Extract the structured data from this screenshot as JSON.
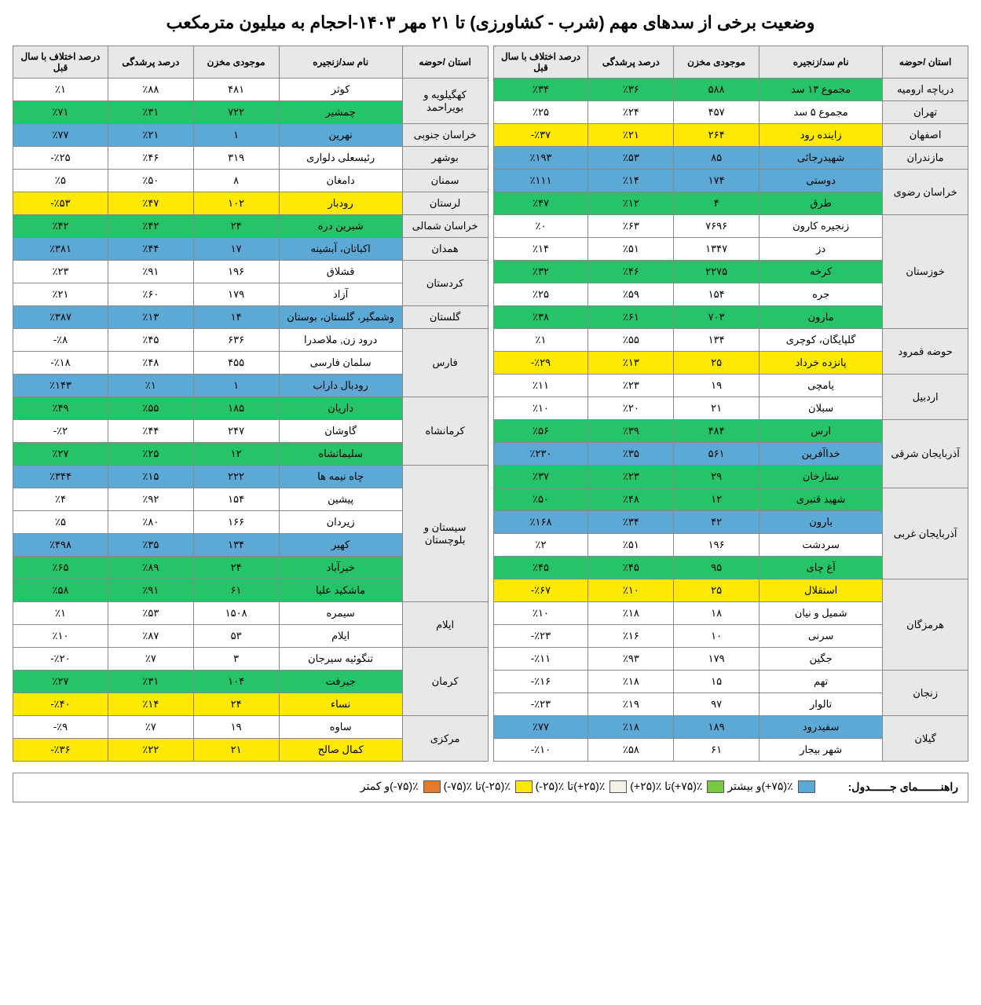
{
  "title": "وضعیت برخی از سدهای مهم (شرب - کشاورزی) تا ۲۱ مهر ۱۴۰۳-احجام به میلیون مترمکعب",
  "headers": {
    "basin": "استان /حوضه",
    "dam": "نام سد/زنجیره",
    "vol": "موجودی مخزن",
    "fill": "درصد پرشدگی",
    "diff": "درصد اختلاف با سال قبل"
  },
  "right": [
    {
      "basin": "دریاچه ارومیه",
      "rows": [
        {
          "dam": "مجموع ۱۳ سد",
          "vol": "۵۸۸",
          "fill": "٪۳۶",
          "diff": "٪۳۴",
          "color": "green"
        }
      ]
    },
    {
      "basin": "تهران",
      "rows": [
        {
          "dam": "مجموع ۵ سد",
          "vol": "۴۵۷",
          "fill": "٪۲۴",
          "diff": "٪۲۵",
          "color": "white"
        }
      ]
    },
    {
      "basin": "اصفهان",
      "rows": [
        {
          "dam": "زاینده رود",
          "vol": "۲۶۴",
          "fill": "٪۲۱",
          "diff": "٪۳۷-",
          "color": "yellow"
        }
      ]
    },
    {
      "basin": "مازندران",
      "rows": [
        {
          "dam": "شهیدرجائی",
          "vol": "۸۵",
          "fill": "٪۵۳",
          "diff": "٪۱۹۳",
          "color": "blue"
        }
      ]
    },
    {
      "basin": "خراسان رضوی",
      "rows": [
        {
          "dam": "دوستی",
          "vol": "۱۷۴",
          "fill": "٪۱۴",
          "diff": "٪۱۱۱",
          "color": "blue"
        },
        {
          "dam": "طرق",
          "vol": "۴",
          "fill": "٪۱۲",
          "diff": "٪۴۷",
          "color": "green"
        }
      ]
    },
    {
      "basin": "خوزستان",
      "rows": [
        {
          "dam": "زنجیره کارون",
          "vol": "۷۶۹۶",
          "fill": "٪۶۳",
          "diff": "٪۰",
          "color": "white"
        },
        {
          "dam": "دز",
          "vol": "۱۳۴۷",
          "fill": "٪۵۱",
          "diff": "٪۱۴",
          "color": "white"
        },
        {
          "dam": "کرخه",
          "vol": "۲۲۷۵",
          "fill": "٪۴۶",
          "diff": "٪۳۲",
          "color": "green"
        },
        {
          "dam": "جره",
          "vol": "۱۵۴",
          "fill": "٪۵۹",
          "diff": "٪۲۵",
          "color": "white"
        },
        {
          "dam": "مارون",
          "vol": "۷۰۳",
          "fill": "٪۶۱",
          "diff": "٪۳۸",
          "color": "green"
        }
      ]
    },
    {
      "basin": "حوضه قمرود",
      "rows": [
        {
          "dam": "گلپایگان، کوچری",
          "vol": "۱۳۴",
          "fill": "٪۵۵",
          "diff": "٪۱",
          "color": "white"
        },
        {
          "dam": "پانزده خرداد",
          "vol": "۲۵",
          "fill": "٪۱۳",
          "diff": "٪۲۹-",
          "color": "yellow"
        }
      ]
    },
    {
      "basin": "اردبیل",
      "rows": [
        {
          "dam": "یامچی",
          "vol": "۱۹",
          "fill": "٪۲۳",
          "diff": "٪۱۱",
          "color": "white"
        },
        {
          "dam": "سبلان",
          "vol": "۲۱",
          "fill": "٪۲۰",
          "diff": "٪۱۰",
          "color": "white"
        }
      ]
    },
    {
      "basin": "آذربایجان شرقی",
      "rows": [
        {
          "dam": "ارس",
          "vol": "۴۸۴",
          "fill": "٪۳۹",
          "diff": "٪۵۶",
          "color": "green"
        },
        {
          "dam": "خداآفرین",
          "vol": "۵۶۱",
          "fill": "٪۳۵",
          "diff": "٪۲۳۰",
          "color": "blue"
        },
        {
          "dam": "ستارخان",
          "vol": "۲۹",
          "fill": "٪۲۳",
          "diff": "٪۳۷",
          "color": "green"
        }
      ]
    },
    {
      "basin": "آذربایجان غربی",
      "rows": [
        {
          "dam": "شهید قنبری",
          "vol": "۱۲",
          "fill": "٪۴۸",
          "diff": "٪۵۰",
          "color": "green"
        },
        {
          "dam": "بارون",
          "vol": "۴۲",
          "fill": "٪۳۴",
          "diff": "٪۱۶۸",
          "color": "blue"
        },
        {
          "dam": "سردشت",
          "vol": "۱۹۶",
          "fill": "٪۵۱",
          "diff": "٪۲",
          "color": "white"
        },
        {
          "dam": "آغ چای",
          "vol": "۹۵",
          "fill": "٪۴۵",
          "diff": "٪۴۵",
          "color": "green"
        }
      ]
    },
    {
      "basin": "هرمزگان",
      "rows": [
        {
          "dam": "استقلال",
          "vol": "۲۵",
          "fill": "٪۱۰",
          "diff": "٪۶۷-",
          "color": "yellow"
        },
        {
          "dam": "شمیل و نیان",
          "vol": "۱۸",
          "fill": "٪۱۸",
          "diff": "٪۱۰",
          "color": "white"
        },
        {
          "dam": "سرنی",
          "vol": "۱۰",
          "fill": "٪۱۶",
          "diff": "٪۲۳-",
          "color": "white"
        },
        {
          "dam": "جگین",
          "vol": "۱۷۹",
          "fill": "٪۹۳",
          "diff": "٪۱۱-",
          "color": "white"
        }
      ]
    },
    {
      "basin": "زنجان",
      "rows": [
        {
          "dam": "تهم",
          "vol": "۱۵",
          "fill": "٪۱۸",
          "diff": "٪۱۶-",
          "color": "white"
        },
        {
          "dam": "تالوار",
          "vol": "۹۷",
          "fill": "٪۱۹",
          "diff": "٪۲۳-",
          "color": "white"
        }
      ]
    },
    {
      "basin": "گیلان",
      "rows": [
        {
          "dam": "سفیدرود",
          "vol": "۱۸۹",
          "fill": "٪۱۸",
          "diff": "٪۷۷",
          "color": "blue"
        },
        {
          "dam": "شهر بیجار",
          "vol": "۶۱",
          "fill": "٪۵۸",
          "diff": "٪۱۰-",
          "color": "white"
        }
      ]
    }
  ],
  "left": [
    {
      "basin": "کهگیلویه و بویراحمد",
      "rows": [
        {
          "dam": "کوثر",
          "vol": "۴۸۱",
          "fill": "٪۸۸",
          "diff": "٪۱",
          "color": "white"
        },
        {
          "dam": "چمشیر",
          "vol": "۷۲۲",
          "fill": "٪۳۱",
          "diff": "٪۷۱",
          "color": "green"
        }
      ]
    },
    {
      "basin": "خراسان جنوبی",
      "rows": [
        {
          "dam": "نهرین",
          "vol": "۱",
          "fill": "٪۲۱",
          "diff": "٪۷۷",
          "color": "blue"
        }
      ]
    },
    {
      "basin": "بوشهر",
      "rows": [
        {
          "dam": "رئیسعلی دلواری",
          "vol": "۳۱۹",
          "fill": "٪۴۶",
          "diff": "٪۲۵-",
          "color": "white"
        }
      ]
    },
    {
      "basin": "سمنان",
      "rows": [
        {
          "dam": "دامغان",
          "vol": "۸",
          "fill": "٪۵۰",
          "diff": "٪۵",
          "color": "white"
        }
      ]
    },
    {
      "basin": "لرستان",
      "rows": [
        {
          "dam": "رودبار",
          "vol": "۱۰۲",
          "fill": "٪۴۷",
          "diff": "٪۵۳-",
          "color": "yellow"
        }
      ]
    },
    {
      "basin": "خراسان شمالی",
      "rows": [
        {
          "dam": "شیرین دره",
          "vol": "۲۴",
          "fill": "٪۴۲",
          "diff": "٪۴۲",
          "color": "green"
        }
      ]
    },
    {
      "basin": "همدان",
      "rows": [
        {
          "dam": "اکباتان، آبشینه",
          "vol": "۱۷",
          "fill": "٪۴۴",
          "diff": "٪۳۸۱",
          "color": "blue"
        }
      ]
    },
    {
      "basin": "کردستان",
      "rows": [
        {
          "dam": "قشلاق",
          "vol": "۱۹۶",
          "fill": "٪۹۱",
          "diff": "٪۲۳",
          "color": "white"
        },
        {
          "dam": "آزاد",
          "vol": "۱۷۹",
          "fill": "٪۶۰",
          "diff": "٪۲۱",
          "color": "white"
        }
      ]
    },
    {
      "basin": "گلستان",
      "rows": [
        {
          "dam": "وشمگیر، گلستان، بوستان",
          "vol": "۱۴",
          "fill": "٪۱۳",
          "diff": "٪۳۸۷",
          "color": "blue"
        }
      ]
    },
    {
      "basin": "فارس",
      "rows": [
        {
          "dam": "درود زن, ملاصدرا",
          "vol": "۶۳۶",
          "fill": "٪۴۵",
          "diff": "٪۸-",
          "color": "white"
        },
        {
          "dam": "سلمان فارسی",
          "vol": "۴۵۵",
          "fill": "٪۴۸",
          "diff": "٪۱۸-",
          "color": "white"
        },
        {
          "dam": "رودبال داراب",
          "vol": "۱",
          "fill": "٪۱",
          "diff": "٪۱۴۳",
          "color": "blue"
        }
      ]
    },
    {
      "basin": "کرمانشاه",
      "rows": [
        {
          "dam": "داریان",
          "vol": "۱۸۵",
          "fill": "٪۵۵",
          "diff": "٪۴۹",
          "color": "green"
        },
        {
          "dam": "گاوشان",
          "vol": "۲۴۷",
          "fill": "٪۴۴",
          "diff": "٪۲-",
          "color": "white"
        },
        {
          "dam": "سلیمانشاه",
          "vol": "۱۲",
          "fill": "٪۲۵",
          "diff": "٪۲۷",
          "color": "green"
        }
      ]
    },
    {
      "basin": "سیستان و بلوچستان",
      "rows": [
        {
          "dam": "چاه نیمه ها",
          "vol": "۲۲۲",
          "fill": "٪۱۵",
          "diff": "٪۳۴۴",
          "color": "blue"
        },
        {
          "dam": "پیشین",
          "vol": "۱۵۴",
          "fill": "٪۹۲",
          "diff": "٪۴",
          "color": "white"
        },
        {
          "dam": "زیردان",
          "vol": "۱۶۶",
          "fill": "٪۸۰",
          "diff": "٪۵",
          "color": "white"
        },
        {
          "dam": "کهیر",
          "vol": "۱۳۴",
          "fill": "٪۳۵",
          "diff": "٪۴۹۸",
          "color": "blue"
        },
        {
          "dam": "خیرآباد",
          "vol": "۲۴",
          "fill": "٪۸۹",
          "diff": "٪۶۵",
          "color": "green"
        },
        {
          "dam": "ماشکید علیا",
          "vol": "۶۱",
          "fill": "٪۹۱",
          "diff": "٪۵۸",
          "color": "green"
        }
      ]
    },
    {
      "basin": "ایلام",
      "rows": [
        {
          "dam": "سیمره",
          "vol": "۱۵۰۸",
          "fill": "٪۵۳",
          "diff": "٪۱",
          "color": "white"
        },
        {
          "dam": "ایلام",
          "vol": "۵۳",
          "fill": "٪۸۷",
          "diff": "٪۱۰",
          "color": "white"
        }
      ]
    },
    {
      "basin": "کرمان",
      "rows": [
        {
          "dam": "تنگوئیه سیرجان",
          "vol": "۳",
          "fill": "٪۷",
          "diff": "٪۲۰-",
          "color": "white"
        },
        {
          "dam": "جیرفت",
          "vol": "۱۰۴",
          "fill": "٪۳۱",
          "diff": "٪۲۷",
          "color": "green"
        },
        {
          "dam": "نساء",
          "vol": "۲۴",
          "fill": "٪۱۴",
          "diff": "٪۴۰-",
          "color": "yellow"
        }
      ]
    },
    {
      "basin": "مرکزی",
      "rows": [
        {
          "dam": "ساوه",
          "vol": "۱۹",
          "fill": "٪۷",
          "diff": "٪۹-",
          "color": "white"
        },
        {
          "dam": "کمال صالح",
          "vol": "۲۱",
          "fill": "٪۲۲",
          "diff": "٪۳۶-",
          "color": "yellow"
        }
      ]
    }
  ],
  "legend": {
    "title": "راهنـــــــمای جــــــدول:",
    "items": [
      {
        "swatch": "sw-blue",
        "label": "٪(۷۵+)و بیشتر"
      },
      {
        "swatch": "sw-green",
        "label": "٪(۷۵+)تا ٪(۲۵+)"
      },
      {
        "swatch": "sw-white",
        "label": "٪(۲۵+)تا ٪(۲۵-)"
      },
      {
        "swatch": "sw-yellow",
        "label": "٪(۲۵-)تا ٪(۷۵-)"
      },
      {
        "swatch": "sw-orange",
        "label": "٪(۷۵-)و کمتر"
      }
    ]
  }
}
